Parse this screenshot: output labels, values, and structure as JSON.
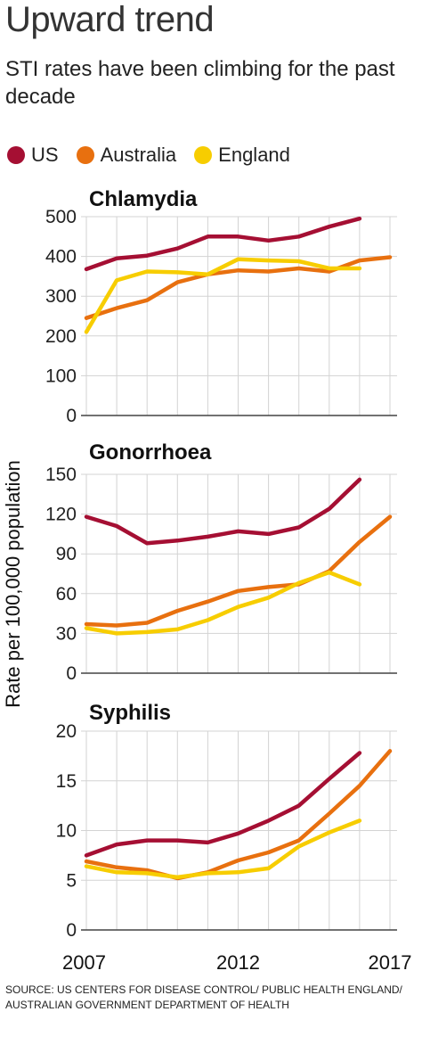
{
  "header": {
    "title": "Upward trend",
    "subtitle": "STI rates have been climbing for the past decade"
  },
  "legend": [
    {
      "name": "US",
      "color": "#a50f33"
    },
    {
      "name": "Australia",
      "color": "#e8700f"
    },
    {
      "name": "England",
      "color": "#f7cd00"
    }
  ],
  "ylabel": "Rate per 100,000 population",
  "source": "SOURCE: US CENTERS FOR DISEASE CONTROL/ PUBLIC HEALTH ENGLAND/ AUSTRALIAN GOVERNMENT DEPARTMENT OF HEALTH",
  "chart_data": [
    {
      "type": "line",
      "title": "Chlamydia",
      "x": [
        2007,
        2008,
        2009,
        2010,
        2011,
        2012,
        2013,
        2014,
        2015,
        2016,
        2017
      ],
      "xlim": [
        2007,
        2017
      ],
      "ylim": [
        0,
        500
      ],
      "yticks": [
        0,
        100,
        200,
        300,
        400,
        500
      ],
      "grid": true,
      "series": [
        {
          "name": "US",
          "color": "#a50f33",
          "x": [
            2007,
            2008,
            2009,
            2010,
            2011,
            2012,
            2013,
            2014,
            2015,
            2016
          ],
          "values": [
            368,
            395,
            402,
            420,
            450,
            450,
            440,
            450,
            475,
            495
          ]
        },
        {
          "name": "Australia",
          "color": "#e8700f",
          "x": [
            2007,
            2008,
            2009,
            2010,
            2011,
            2012,
            2013,
            2014,
            2015,
            2016,
            2017
          ],
          "values": [
            245,
            270,
            290,
            335,
            355,
            365,
            362,
            370,
            362,
            390,
            398
          ]
        },
        {
          "name": "England",
          "color": "#f7cd00",
          "x": [
            2007,
            2008,
            2009,
            2010,
            2011,
            2012,
            2013,
            2014,
            2015,
            2016
          ],
          "values": [
            210,
            340,
            362,
            360,
            355,
            393,
            390,
            388,
            370,
            370
          ]
        }
      ]
    },
    {
      "type": "line",
      "title": "Gonorrhoea",
      "x": [
        2007,
        2008,
        2009,
        2010,
        2011,
        2012,
        2013,
        2014,
        2015,
        2016,
        2017
      ],
      "xlim": [
        2007,
        2017
      ],
      "ylim": [
        0,
        150
      ],
      "yticks": [
        0,
        30,
        60,
        90,
        120,
        150
      ],
      "grid": true,
      "series": [
        {
          "name": "US",
          "color": "#a50f33",
          "x": [
            2007,
            2008,
            2009,
            2010,
            2011,
            2012,
            2013,
            2014,
            2015,
            2016
          ],
          "values": [
            118,
            111,
            98,
            100,
            103,
            107,
            105,
            110,
            124,
            146
          ]
        },
        {
          "name": "Australia",
          "color": "#e8700f",
          "x": [
            2007,
            2008,
            2009,
            2010,
            2011,
            2012,
            2013,
            2014,
            2015,
            2016,
            2017
          ],
          "values": [
            37,
            36,
            38,
            47,
            54,
            62,
            65,
            67,
            77,
            99,
            118
          ]
        },
        {
          "name": "England",
          "color": "#f7cd00",
          "x": [
            2007,
            2008,
            2009,
            2010,
            2011,
            2012,
            2013,
            2014,
            2015,
            2016
          ],
          "values": [
            34,
            30,
            31,
            33,
            40,
            50,
            57,
            68,
            76,
            67
          ]
        }
      ]
    },
    {
      "type": "line",
      "title": "Syphilis",
      "x": [
        2007,
        2008,
        2009,
        2010,
        2011,
        2012,
        2013,
        2014,
        2015,
        2016,
        2017
      ],
      "xlim": [
        2007,
        2017
      ],
      "ylim": [
        0,
        20
      ],
      "yticks": [
        0,
        5,
        10,
        15,
        20
      ],
      "xticks": [
        2007,
        2012,
        2017
      ],
      "grid": true,
      "series": [
        {
          "name": "US",
          "color": "#a50f33",
          "x": [
            2007,
            2008,
            2009,
            2010,
            2011,
            2012,
            2013,
            2014,
            2015,
            2016
          ],
          "values": [
            7.5,
            8.6,
            9.0,
            9.0,
            8.8,
            9.7,
            11.0,
            12.5,
            15.2,
            17.8
          ]
        },
        {
          "name": "Australia",
          "color": "#e8700f",
          "x": [
            2007,
            2008,
            2009,
            2010,
            2011,
            2012,
            2013,
            2014,
            2015,
            2016,
            2017
          ],
          "values": [
            6.9,
            6.3,
            6.0,
            5.2,
            5.8,
            7.0,
            7.8,
            9.0,
            11.7,
            14.5,
            18.0
          ]
        },
        {
          "name": "England",
          "color": "#f7cd00",
          "x": [
            2007,
            2008,
            2009,
            2010,
            2011,
            2012,
            2013,
            2014,
            2015,
            2016
          ],
          "values": [
            6.4,
            5.8,
            5.7,
            5.3,
            5.7,
            5.8,
            6.2,
            8.4,
            9.8,
            11.0
          ]
        }
      ]
    }
  ]
}
